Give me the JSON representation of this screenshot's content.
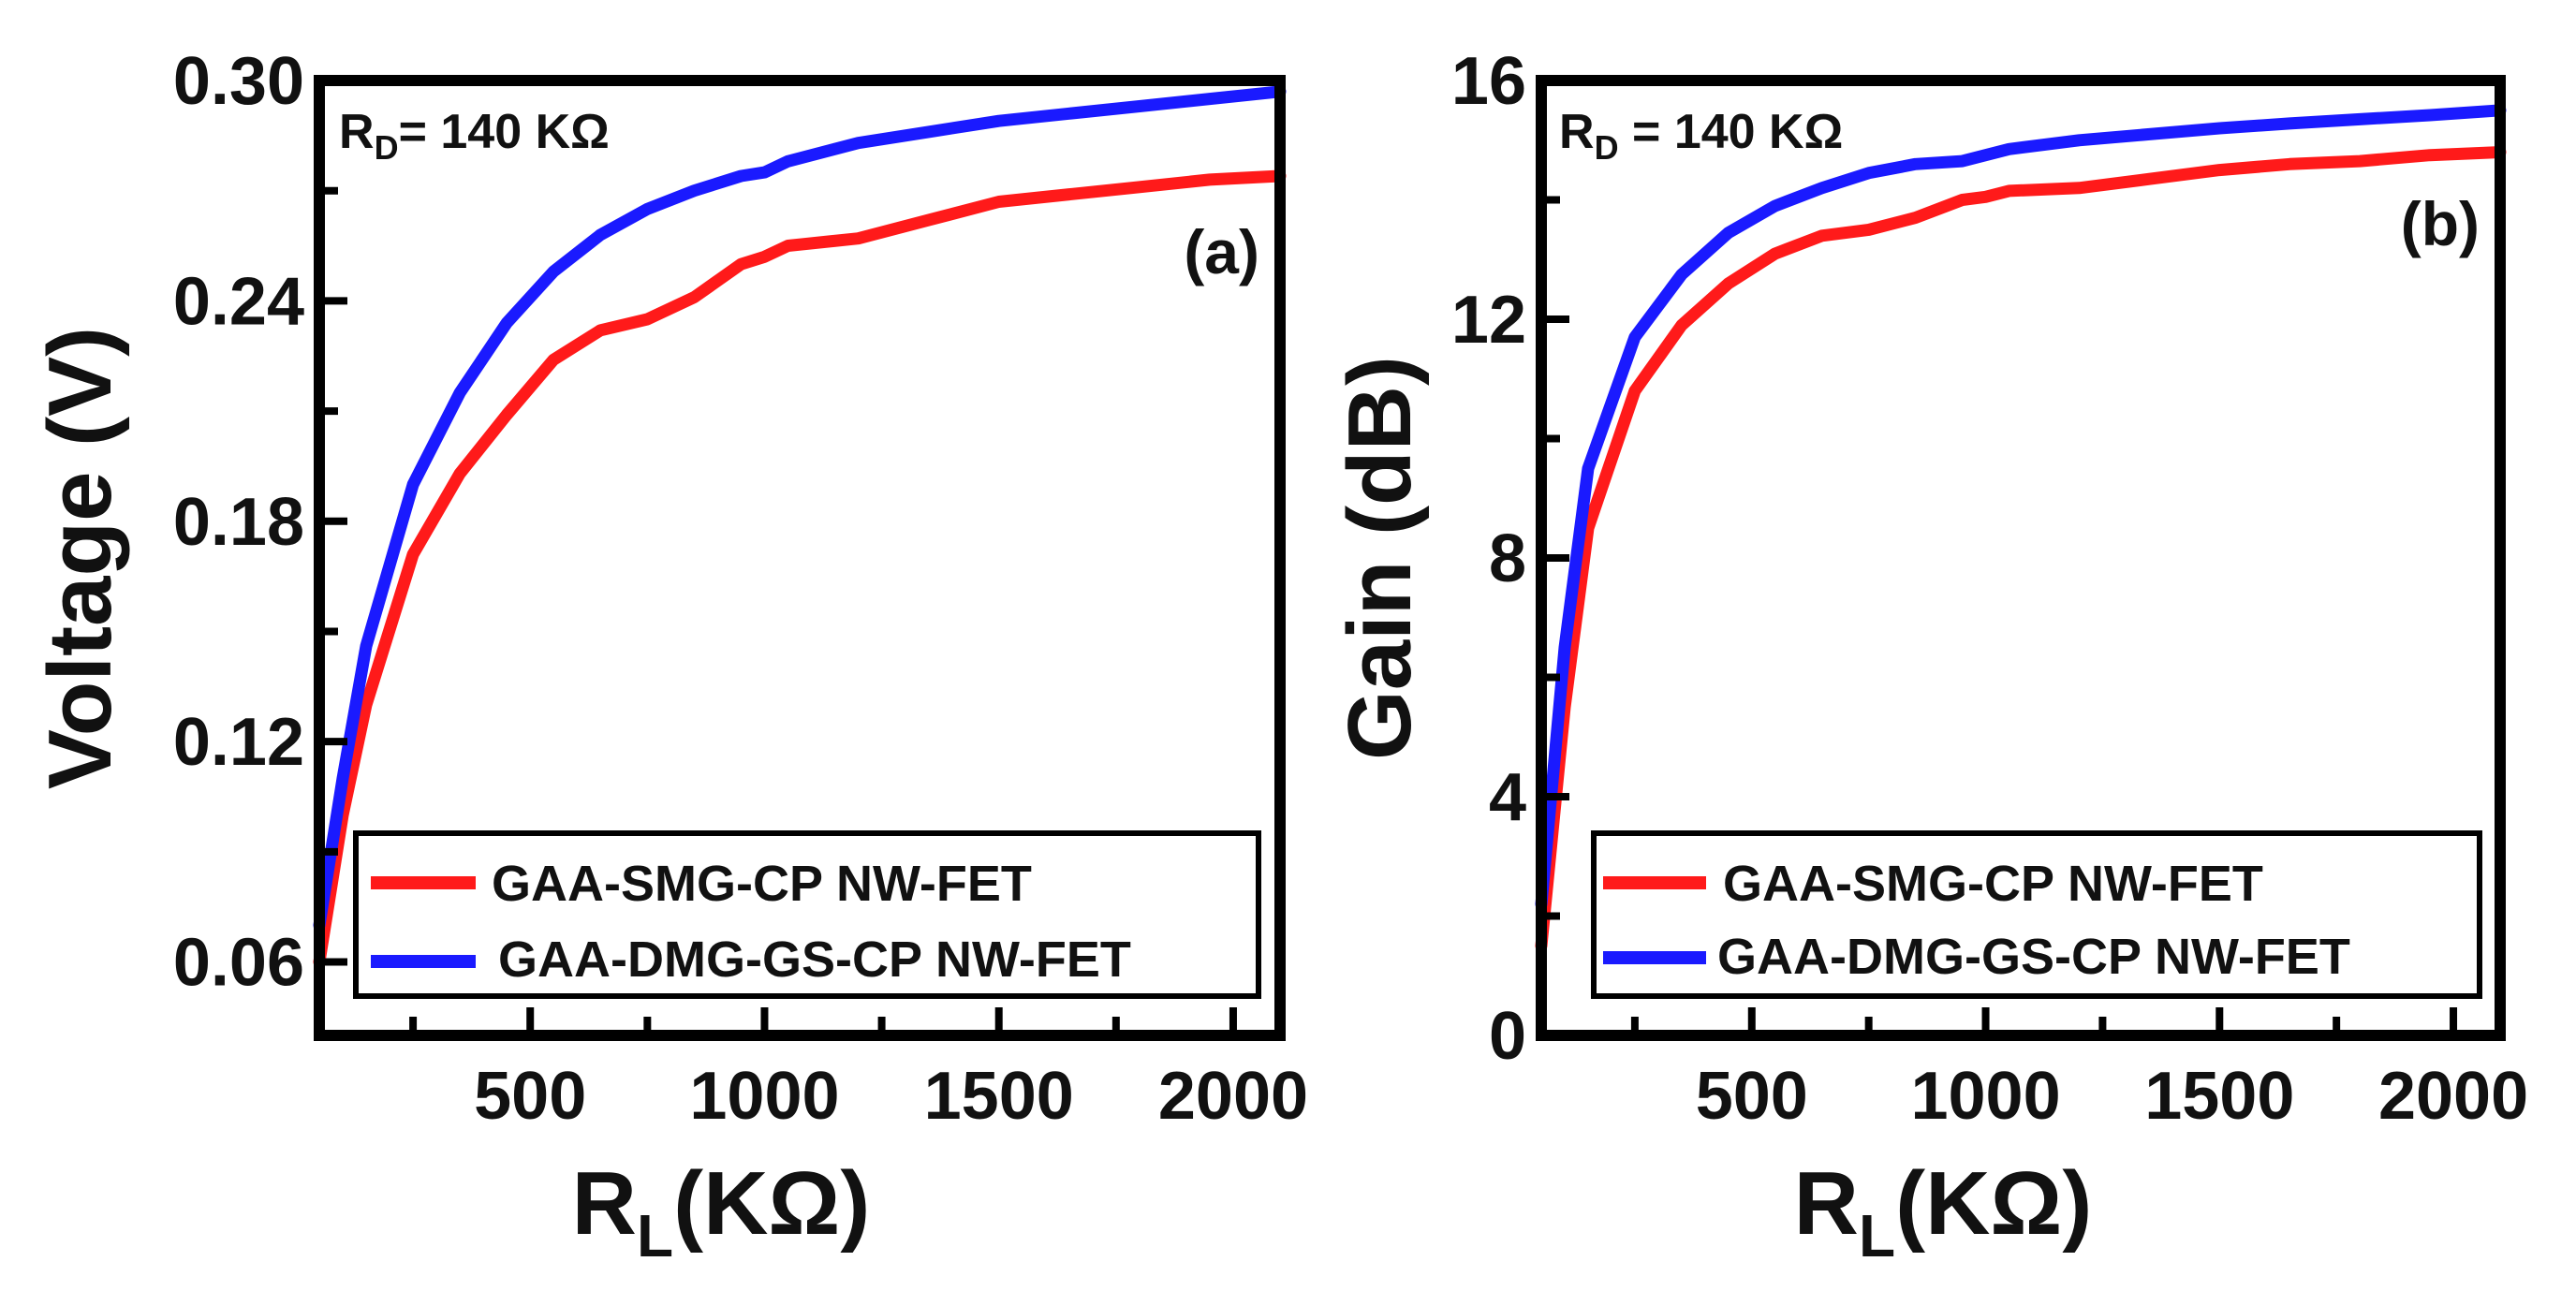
{
  "chart_data": [
    {
      "type": "line",
      "panel_label": "(a)",
      "annotation": {
        "main": "R",
        "sub": "D",
        "rest": "= 140 KΩ"
      },
      "xlabel": {
        "main": "R",
        "sub": "L",
        "rest": "(KΩ)"
      },
      "ylabel": "Voltage (V)",
      "xlim": [
        50,
        2100
      ],
      "ylim": [
        0.04,
        0.3
      ],
      "xticks": [
        500,
        1000,
        1500,
        2000
      ],
      "xtick_labels": [
        "500",
        "1000",
        "1500",
        "2000"
      ],
      "yticks": [
        0.06,
        0.12,
        0.18,
        0.24,
        0.3
      ],
      "ytick_labels": [
        "0.06",
        "0.12",
        "0.18",
        "0.24",
        "0.30"
      ],
      "legend": "bottom-right",
      "series": [
        {
          "name": "GAA-SMG-CP NW-FET",
          "color": "#ff1a1a",
          "x": [
            50,
            100,
            150,
            250,
            350,
            450,
            550,
            650,
            750,
            850,
            950,
            1000,
            1050,
            1200,
            1350,
            1500,
            1650,
            1800,
            1950,
            2100
          ],
          "y": [
            0.06,
            0.1,
            0.13,
            0.171,
            0.193,
            0.209,
            0.224,
            0.232,
            0.235,
            0.241,
            0.25,
            0.252,
            0.255,
            0.257,
            0.262,
            0.267,
            0.269,
            0.271,
            0.273,
            0.274
          ]
        },
        {
          "name": "GAA-DMG-GS-CP NW-FET",
          "color": "#1a1aff",
          "x": [
            50,
            100,
            150,
            250,
            350,
            450,
            550,
            650,
            750,
            850,
            950,
            1000,
            1050,
            1200,
            1350,
            1500,
            1650,
            1800,
            1950,
            2100
          ],
          "y": [
            0.07,
            0.11,
            0.146,
            0.19,
            0.215,
            0.234,
            0.248,
            0.258,
            0.265,
            0.27,
            0.274,
            0.275,
            0.278,
            0.283,
            0.286,
            0.289,
            0.291,
            0.293,
            0.295,
            0.297
          ]
        }
      ]
    },
    {
      "type": "line",
      "panel_label": "(b)",
      "annotation": {
        "main": "R",
        "sub": "D",
        "rest": " = 140 KΩ"
      },
      "xlabel": {
        "main": "R",
        "sub": "L",
        "rest": "(KΩ)"
      },
      "ylabel": "Gain (dB)",
      "xlim": [
        50,
        2100
      ],
      "ylim": [
        0,
        16
      ],
      "xticks": [
        500,
        1000,
        1500,
        2000
      ],
      "xtick_labels": [
        "500",
        "1000",
        "1500",
        "2000"
      ],
      "yticks": [
        0,
        4,
        8,
        12,
        16
      ],
      "ytick_labels": [
        "0",
        "4",
        "8",
        "12",
        "16"
      ],
      "legend": "bottom-right",
      "series": [
        {
          "name": "GAA-SMG-CP NW-FET",
          "color": "#ff1a1a",
          "x": [
            50,
            100,
            150,
            250,
            350,
            450,
            550,
            650,
            750,
            850,
            950,
            1000,
            1050,
            1200,
            1350,
            1500,
            1650,
            1800,
            1950,
            2100
          ],
          "y": [
            1.5,
            5.5,
            8.5,
            10.8,
            11.9,
            12.6,
            13.1,
            13.4,
            13.5,
            13.7,
            14.0,
            14.05,
            14.15,
            14.2,
            14.35,
            14.5,
            14.6,
            14.65,
            14.75,
            14.8
          ]
        },
        {
          "name": "GAA-DMG-GS-CP NW-FET",
          "color": "#1a1aff",
          "x": [
            50,
            100,
            150,
            250,
            350,
            450,
            550,
            650,
            750,
            850,
            950,
            1000,
            1050,
            1200,
            1350,
            1500,
            1650,
            1800,
            1950,
            2100
          ],
          "y": [
            2.2,
            6.5,
            9.5,
            11.7,
            12.75,
            13.45,
            13.9,
            14.2,
            14.45,
            14.6,
            14.65,
            14.75,
            14.85,
            15.0,
            15.1,
            15.2,
            15.28,
            15.35,
            15.42,
            15.5
          ]
        }
      ]
    }
  ]
}
